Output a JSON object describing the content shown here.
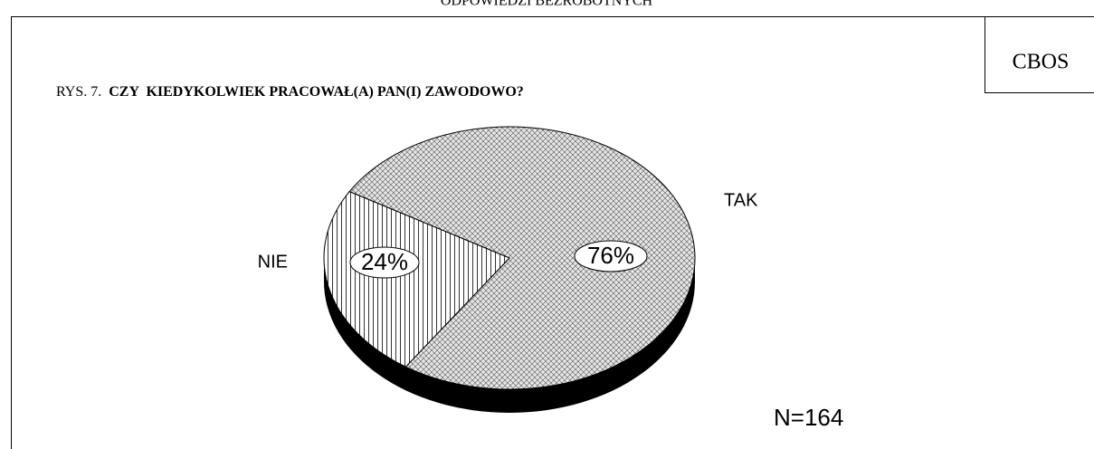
{
  "header": "ODPOWIEDZI BEZROBOTNYCH",
  "brand": "CBOS",
  "chart_data": {
    "type": "pie",
    "figure_label": "RYS. 7.",
    "title": "CZY  KIEDYKOLWIEK PRACOWAŁ(A) PAN(I) ZAWODOWO?",
    "categories": [
      "TAK",
      "NIE"
    ],
    "values": [
      76,
      24
    ],
    "value_labels": [
      "76%",
      "24%"
    ],
    "note": "N=164"
  }
}
